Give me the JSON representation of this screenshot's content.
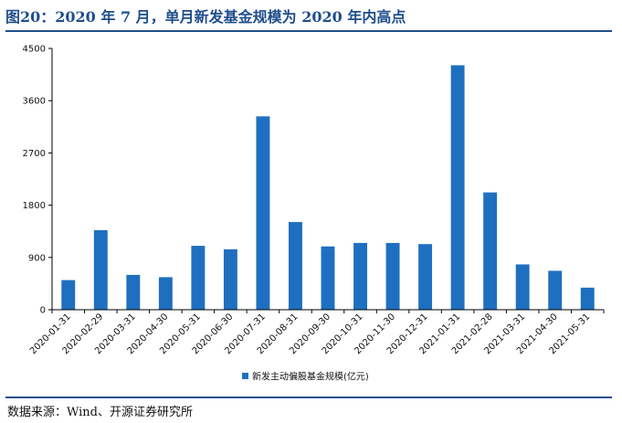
{
  "figure": {
    "title": "图20：2020 年 7 月，单月新发基金规模为 2020 年内高点",
    "source": "数据来源：Wind、开源证券研究所"
  },
  "colors": {
    "bar": "#1f6fc0",
    "rule": "#1f4e8c",
    "axis": "#000000"
  },
  "chart_data": {
    "type": "bar",
    "categories": [
      "2020-01-31",
      "2020-02-29",
      "2020-03-31",
      "2020-04-30",
      "2020-05-31",
      "2020-06-30",
      "2020-07-31",
      "2020-08-31",
      "2020-09-30",
      "2020-10-31",
      "2020-11-30",
      "2020-12-31",
      "2021-01-31",
      "2021-02-28",
      "2021-03-31",
      "2021-04-30",
      "2021-05-31"
    ],
    "series": [
      {
        "name": "新发主动偏股基金规模(亿元)",
        "values": [
          510,
          1370,
          600,
          560,
          1100,
          1040,
          3330,
          1510,
          1090,
          1150,
          1150,
          1130,
          4210,
          2020,
          780,
          670,
          380
        ]
      }
    ],
    "ylim": [
      0,
      4500
    ],
    "yticks": [
      0,
      900,
      1800,
      2700,
      3600,
      4500
    ],
    "grid": false,
    "legend_position": "bottom"
  }
}
